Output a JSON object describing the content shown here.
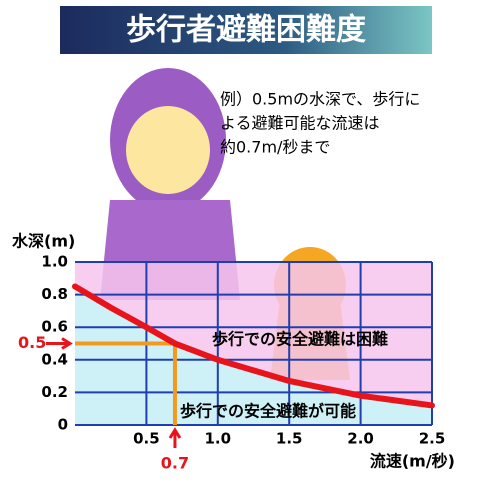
{
  "chart_data": {
    "type": "line",
    "title": "歩行者避難困難度",
    "annotation": [
      "例）0.5mの水深で、歩行に",
      "よる避難可能な流速は",
      "約0.7m/秒まで"
    ],
    "x_label": "流速(m/秒)",
    "y_label": "水深(m)",
    "x": [
      0,
      0.25,
      0.5,
      0.7,
      1.0,
      1.5,
      2.0,
      2.5
    ],
    "series": [
      {
        "color": "#e8141c",
        "values": [
          0.85,
          0.72,
          0.6,
          0.5,
          0.4,
          0.27,
          0.18,
          0.12
        ]
      }
    ],
    "regions": {
      "above": "歩行での安全避難は困難",
      "below": "歩行での安全避難が可能",
      "above_color": "#f6c6ec",
      "below_color": "#c4eef6"
    },
    "highlight": {
      "x": 0.7,
      "y": 0.5,
      "color": "#f39a1e",
      "label_color": "#e8141c"
    },
    "xlim": [
      0,
      2.5
    ],
    "ylim": [
      0,
      1.0
    ],
    "xticks": [
      0.5,
      {
        "value": 1.0,
        "label": "1.0"
      },
      1.5,
      {
        "value": 2.0,
        "label": "2.0"
      },
      2.5
    ],
    "yticks": [
      0,
      0.2,
      0.4,
      0.6,
      0.8,
      {
        "value": 1.0,
        "label": "1.0"
      }
    ],
    "grid": true,
    "grid_color": "#1f3fb0"
  }
}
